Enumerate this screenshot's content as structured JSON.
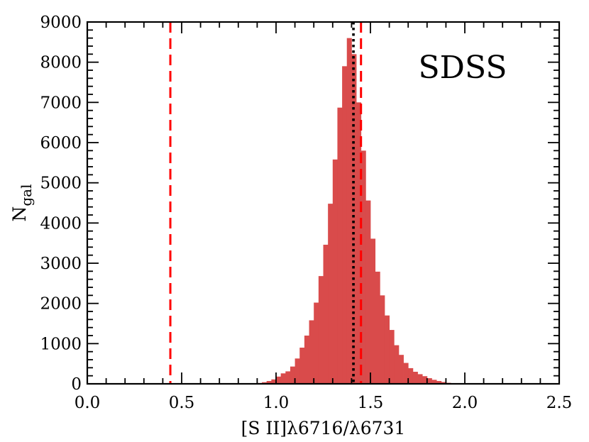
{
  "chart_data": {
    "type": "bar",
    "title": "",
    "annotation": "SDSS",
    "xlabel": "[S II]λ6716/λ6731",
    "ylabel_main": "N",
    "ylabel_sub": "gal",
    "xlim": [
      0.0,
      2.5
    ],
    "ylim": [
      0,
      9000
    ],
    "xticks": [
      0.0,
      0.5,
      1.0,
      1.5,
      2.0,
      2.5
    ],
    "xtick_labels": [
      "0.0",
      "0.5",
      "1.0",
      "1.5",
      "2.0",
      "2.5"
    ],
    "yticks": [
      0,
      1000,
      2000,
      3000,
      4000,
      5000,
      6000,
      7000,
      8000,
      9000
    ],
    "ytick_labels": [
      "0",
      "1000",
      "2000",
      "3000",
      "4000",
      "5000",
      "6000",
      "7000",
      "8000",
      "9000"
    ],
    "bin_edges_start": 0.0,
    "bin_width": 0.025,
    "counts": [
      0,
      0,
      0,
      0,
      0,
      0,
      0,
      0,
      0,
      0,
      0,
      0,
      0,
      0,
      0,
      0,
      0,
      0,
      0,
      0,
      0,
      0,
      0,
      0,
      0,
      0,
      0,
      0,
      0,
      0,
      0,
      0,
      0,
      0,
      5,
      10,
      20,
      40,
      70,
      110,
      180,
      260,
      310,
      430,
      630,
      900,
      1200,
      1580,
      2020,
      2680,
      3460,
      4480,
      5580,
      6870,
      7900,
      8600,
      8200,
      7000,
      5800,
      4560,
      3610,
      2790,
      2200,
      1700,
      1340,
      960,
      720,
      520,
      390,
      300,
      240,
      190,
      140,
      100,
      70,
      45,
      25,
      15,
      8,
      4,
      2,
      1,
      0,
      0,
      0,
      0,
      0,
      0,
      0,
      0,
      0,
      0,
      0,
      0,
      0,
      0,
      0,
      0,
      0,
      0
    ],
    "bar_color": "#d94b4b",
    "reference_lines": [
      {
        "x": 0.44,
        "style": "dashed",
        "color": "#ff0000"
      },
      {
        "x": 1.45,
        "style": "dashed",
        "color": "#ff0000"
      },
      {
        "x": 1.41,
        "style": "dotted",
        "color": "#000000"
      }
    ],
    "grid": false
  }
}
